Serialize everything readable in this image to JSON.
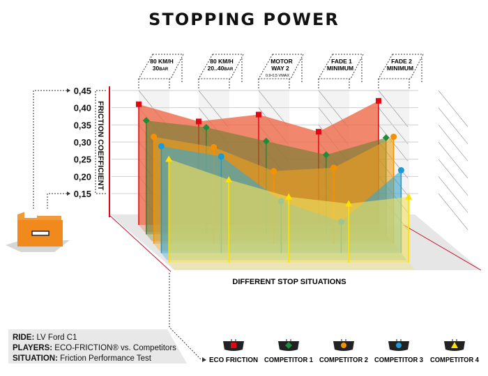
{
  "title": "STOPPING POWER",
  "info": {
    "ride_label": "RIDE:",
    "ride_value": "LV Ford C1",
    "players_label": "PLAYERS:",
    "players_value": "ECO-FRICTION® vs. Competitors",
    "situation_label": "SITUATION:",
    "situation_value": "Friction Performance Test"
  },
  "chart_data": {
    "type": "area",
    "style": "3d-layered",
    "ylabel": "FRICTION COEFFICIENT",
    "xlabel": "DIFFERENT STOP SITUATIONS",
    "ylim": [
      0.15,
      0.45
    ],
    "yticks": [
      "0,45",
      "0,40",
      "0,35",
      "0,30",
      "0,25",
      "0,20",
      "0,15"
    ],
    "ytick_values": [
      0.45,
      0.4,
      0.35,
      0.3,
      0.25,
      0.2,
      0.15
    ],
    "grid": true,
    "legend_position": "bottom",
    "categories": [
      {
        "line1": "80 KM/H",
        "line2": "30",
        "unit": "BAR",
        "sub": ""
      },
      {
        "line1": "80 KM/H",
        "line2": "20..40",
        "unit": "BAR",
        "sub": ""
      },
      {
        "line1": "MOTOR",
        "line2": "WAY 2",
        "unit": "",
        "sub": "0,9-0,5 VMAX"
      },
      {
        "line1": "FADE 1",
        "line2": "MINIMUM",
        "unit": "",
        "sub": ""
      },
      {
        "line1": "FADE 2",
        "line2": "MINIMUM",
        "unit": "",
        "sub": ""
      }
    ],
    "series": [
      {
        "name": "ECO FRICTION",
        "marker": "square",
        "color": "#e30613",
        "fill": "#ee6a4a",
        "values": [
          0.41,
          0.36,
          0.38,
          0.33,
          0.42
        ]
      },
      {
        "name": "COMPETITOR 1",
        "marker": "diamond",
        "color": "#1e8c3a",
        "fill": "#6f7d2c",
        "values": [
          0.39,
          0.37,
          0.33,
          0.29,
          0.34
        ]
      },
      {
        "name": "COMPETITOR 2",
        "marker": "circle",
        "color": "#f39200",
        "fill": "#eea020",
        "values": [
          0.37,
          0.34,
          0.27,
          0.28,
          0.37
        ]
      },
      {
        "name": "COMPETITOR 3",
        "marker": "hexagon",
        "color": "#1b9ad6",
        "fill": "#3aa6cc",
        "values": [
          0.37,
          0.34,
          0.21,
          0.15,
          0.3
        ]
      },
      {
        "name": "COMPETITOR 4",
        "marker": "triangle",
        "color": "#ffe000",
        "fill": "#f0e060",
        "values": [
          0.36,
          0.3,
          0.25,
          0.23,
          0.25
        ]
      }
    ]
  }
}
